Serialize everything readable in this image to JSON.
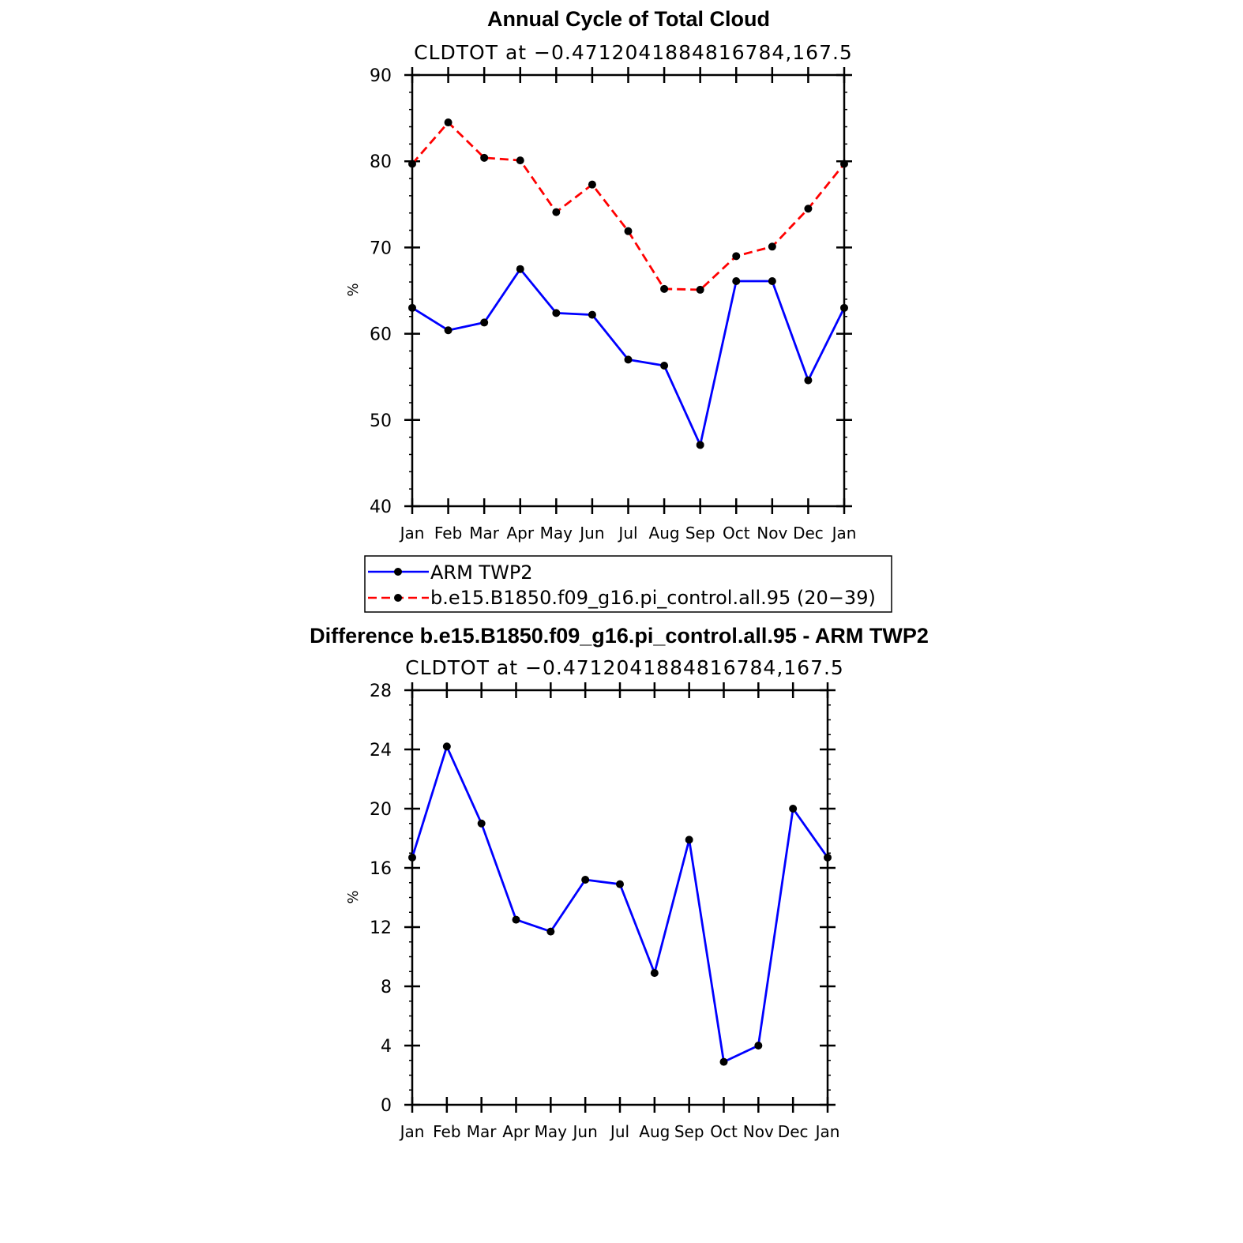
{
  "chart_data": [
    {
      "type": "line",
      "title": "Annual Cycle of Total Cloud",
      "subtitle": "CLDTOT at −0.4712041884816784,167.5",
      "xlabel": "",
      "ylabel": "%",
      "categories": [
        "Jan",
        "Feb",
        "Mar",
        "Apr",
        "May",
        "Jun",
        "Jul",
        "Aug",
        "Sep",
        "Oct",
        "Nov",
        "Dec",
        "Jan"
      ],
      "ylim": [
        40,
        90
      ],
      "yticks": [
        40,
        50,
        60,
        70,
        80,
        90
      ],
      "y_minor_step": 2,
      "series": [
        {
          "name": "ARM TWP2",
          "color": "#0000ff",
          "dash": "solid",
          "values": [
            63.0,
            60.4,
            61.3,
            67.5,
            62.4,
            62.2,
            57.0,
            56.3,
            47.1,
            66.1,
            66.1,
            54.6,
            63.0
          ]
        },
        {
          "name": "b.e15.B1850.f09_g16.pi_control.all.95 (20−39)",
          "color": "#ff0000",
          "dash": "dashed",
          "values": [
            79.7,
            84.5,
            80.4,
            80.1,
            74.1,
            77.3,
            71.9,
            65.2,
            65.1,
            69.0,
            70.1,
            74.5,
            79.7
          ]
        }
      ],
      "legend": {
        "entries": [
          "ARM TWP2",
          "b.e15.B1850.f09_g16.pi_control.all.95 (20−39)"
        ],
        "placement": "below-plot"
      }
    },
    {
      "type": "line",
      "title": "Difference b.e15.B1850.f09_g16.pi_control.all.95 - ARM TWP2",
      "subtitle": "CLDTOT at −0.4712041884816784,167.5",
      "xlabel": "",
      "ylabel": "%",
      "categories": [
        "Jan",
        "Feb",
        "Mar",
        "Apr",
        "May",
        "Jun",
        "Jul",
        "Aug",
        "Sep",
        "Oct",
        "Nov",
        "Dec",
        "Jan"
      ],
      "ylim": [
        0,
        28
      ],
      "yticks": [
        0,
        4,
        8,
        12,
        16,
        20,
        24,
        28
      ],
      "y_minor_step": 1,
      "series": [
        {
          "name": "Difference",
          "color": "#0000ff",
          "dash": "solid",
          "values": [
            16.7,
            24.2,
            19.0,
            12.5,
            11.7,
            15.2,
            14.9,
            8.9,
            17.9,
            2.9,
            4.0,
            20.0,
            16.7
          ]
        }
      ]
    }
  ]
}
